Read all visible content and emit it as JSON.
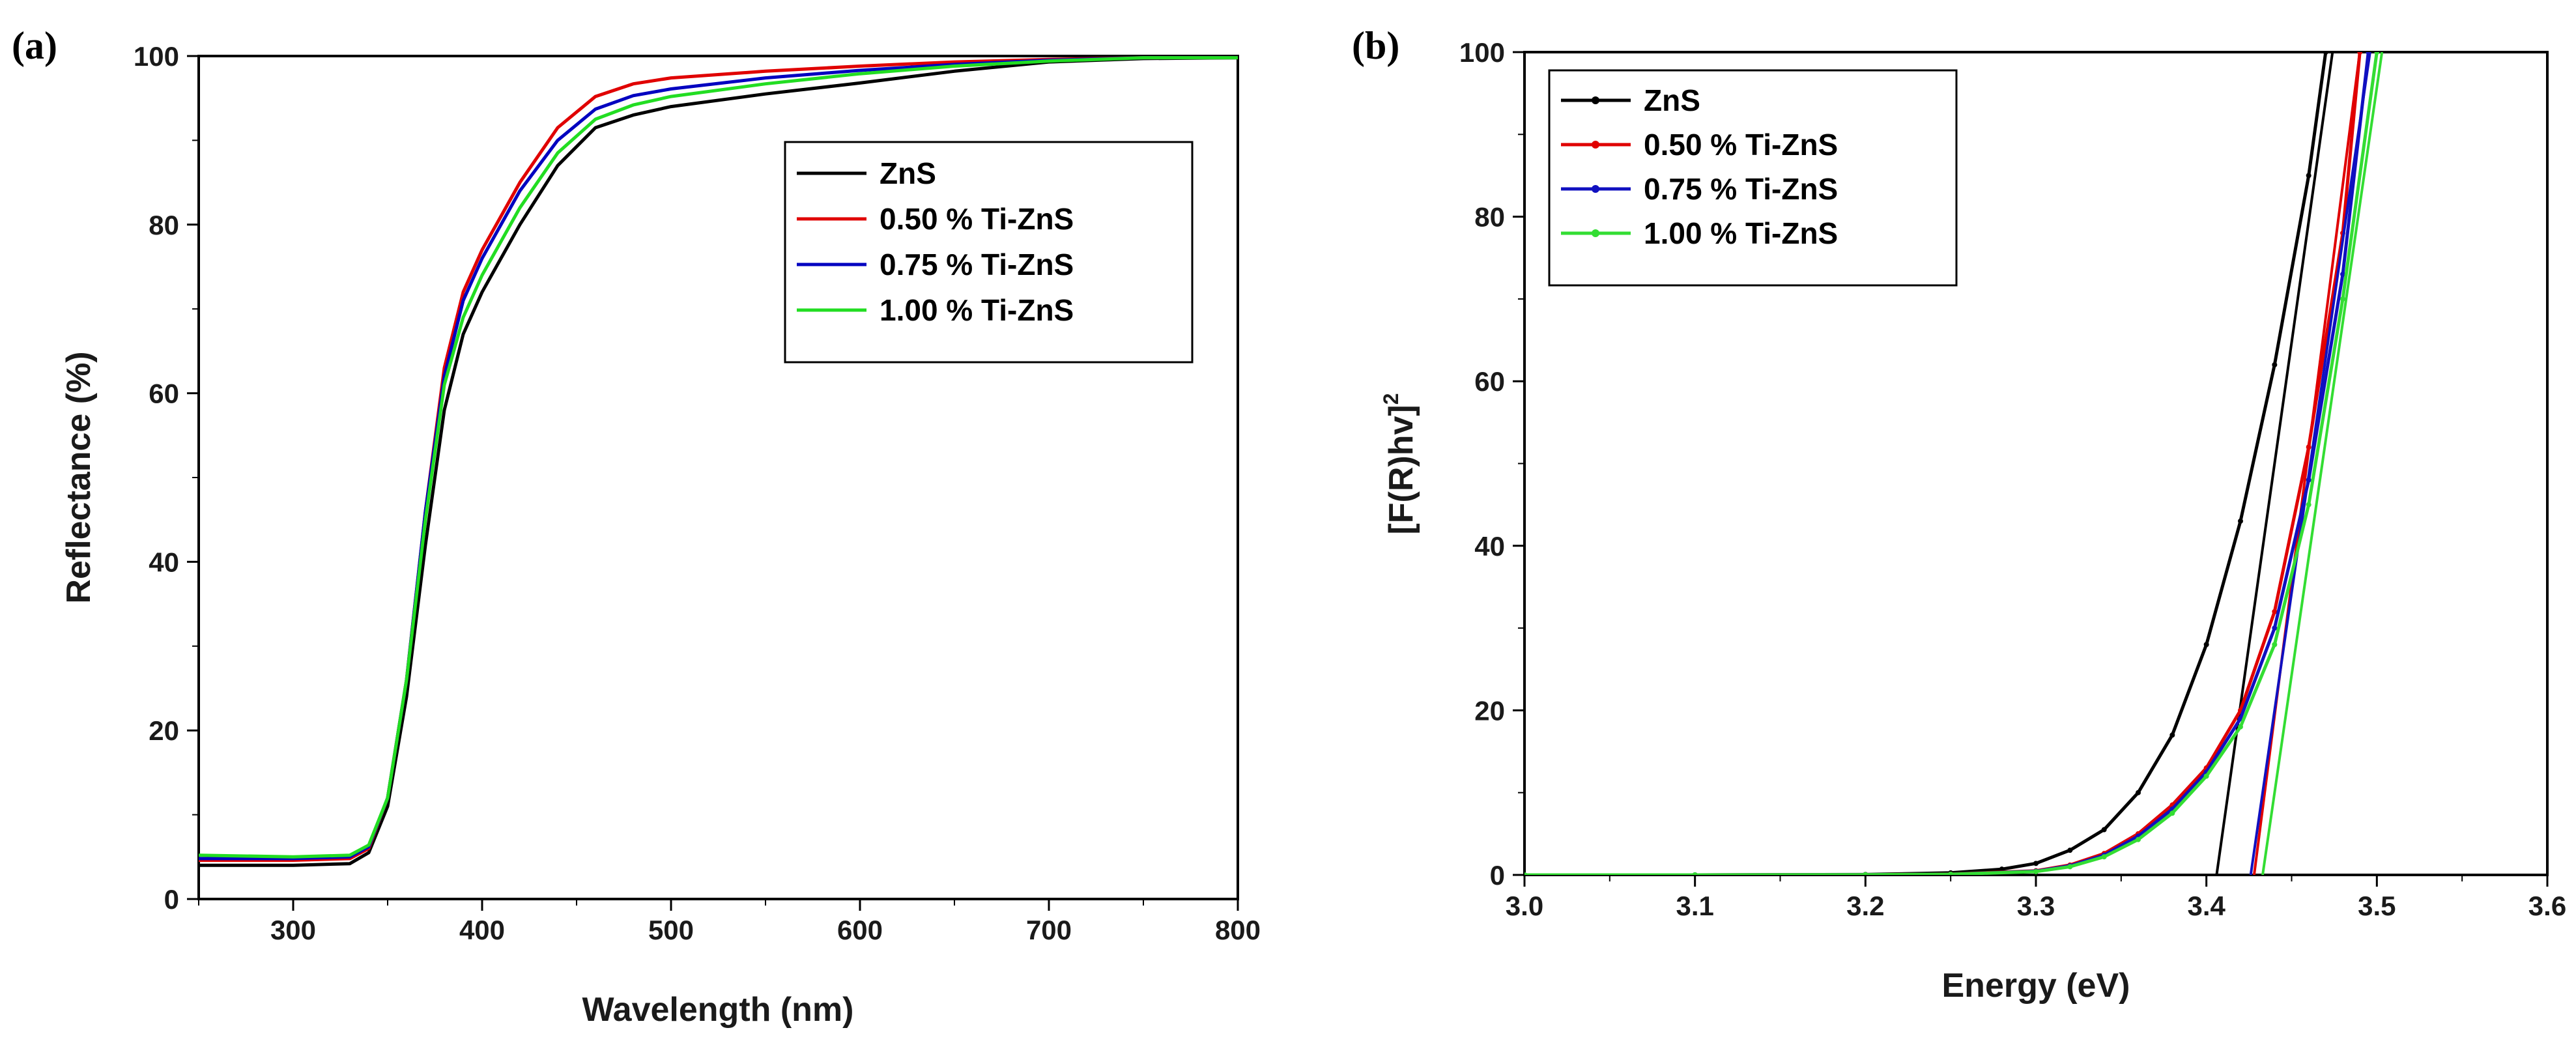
{
  "chart_data": [
    {
      "type": "line",
      "panel_label": "(a)",
      "title": "",
      "xlabel": "Wavelength (nm)",
      "ylabel": "Reflectance (%)",
      "xlim": [
        250,
        800
      ],
      "ylim": [
        0,
        100
      ],
      "xticks": [
        300,
        400,
        500,
        600,
        700,
        800
      ],
      "yticks": [
        0,
        20,
        40,
        60,
        80,
        100
      ],
      "grid": false,
      "legend_position": "top-right",
      "series": [
        {
          "name": "ZnS",
          "color": "#000000",
          "x": [
            250,
            300,
            330,
            340,
            350,
            360,
            370,
            380,
            390,
            400,
            420,
            440,
            460,
            480,
            500,
            550,
            600,
            650,
            700,
            750,
            800
          ],
          "y": [
            4.0,
            4.0,
            4.2,
            5.5,
            11,
            24,
            42,
            58,
            67,
            72,
            80,
            87,
            91.5,
            93,
            94,
            95.5,
            96.8,
            98.2,
            99.3,
            99.7,
            99.8
          ]
        },
        {
          "name": "0.50 % Ti-ZnS",
          "color": "#e00000",
          "x": [
            250,
            300,
            330,
            340,
            350,
            360,
            370,
            380,
            390,
            400,
            420,
            440,
            460,
            480,
            500,
            550,
            600,
            650,
            700,
            750,
            800
          ],
          "y": [
            4.6,
            4.6,
            4.8,
            6,
            12,
            26,
            46,
            63,
            72,
            77,
            85,
            91.5,
            95.2,
            96.7,
            97.4,
            98.2,
            98.8,
            99.3,
            99.6,
            99.8,
            99.8
          ]
        },
        {
          "name": "0.75 % Ti-ZnS",
          "color": "#0000c0",
          "x": [
            250,
            300,
            330,
            340,
            350,
            360,
            370,
            380,
            390,
            400,
            420,
            440,
            460,
            480,
            500,
            550,
            600,
            650,
            700,
            750,
            800
          ],
          "y": [
            4.8,
            4.8,
            5.0,
            6.2,
            12,
            26,
            46,
            62,
            71,
            76,
            84,
            90,
            93.7,
            95.3,
            96.1,
            97.4,
            98.3,
            99.0,
            99.5,
            99.8,
            99.8
          ]
        },
        {
          "name": "1.00 % Ti-ZnS",
          "color": "#22dd22",
          "x": [
            250,
            300,
            330,
            340,
            350,
            360,
            370,
            380,
            390,
            400,
            420,
            440,
            460,
            480,
            500,
            550,
            600,
            650,
            700,
            750,
            800
          ],
          "y": [
            5.2,
            5.0,
            5.2,
            6.4,
            12,
            26,
            45,
            61,
            69,
            74,
            82,
            88.5,
            92.5,
            94.2,
            95.2,
            96.7,
            97.9,
            98.8,
            99.4,
            99.8,
            99.8
          ]
        }
      ]
    },
    {
      "type": "line",
      "panel_label": "(b)",
      "title": "",
      "xlabel": "Energy (eV)",
      "ylabel_main": "[F(R)hv]",
      "ylabel_sup": "2",
      "xlim": [
        3.0,
        3.6
      ],
      "ylim": [
        0,
        100
      ],
      "xticks": [
        "3.0",
        "3.1",
        "3.2",
        "3.3",
        "3.4",
        "3.5",
        "3.6"
      ],
      "yticks": [
        0,
        20,
        40,
        60,
        80,
        100
      ],
      "grid": false,
      "legend_position": "top-left",
      "series": [
        {
          "name": "ZnS",
          "color": "#000000",
          "x": [
            3.0,
            3.1,
            3.2,
            3.25,
            3.28,
            3.3,
            3.32,
            3.34,
            3.36,
            3.38,
            3.4,
            3.42,
            3.44,
            3.46,
            3.47
          ],
          "y": [
            0,
            0,
            0.05,
            0.25,
            0.7,
            1.4,
            3.0,
            5.5,
            10,
            17,
            28,
            43,
            62,
            85,
            100
          ],
          "fit": {
            "x": [
              3.406,
              3.474
            ],
            "y": [
              0,
              100
            ]
          }
        },
        {
          "name": "0.50 % Ti-ZnS",
          "color": "#e00000",
          "x": [
            3.0,
            3.1,
            3.2,
            3.25,
            3.3,
            3.32,
            3.34,
            3.36,
            3.38,
            3.4,
            3.42,
            3.44,
            3.46,
            3.48,
            3.49
          ],
          "y": [
            0,
            0,
            0.02,
            0.1,
            0.5,
            1.2,
            2.6,
            5,
            8.5,
            13,
            20,
            32,
            52,
            78,
            100
          ],
          "fit": {
            "x": [
              3.428,
              3.49
            ],
            "y": [
              0,
              100
            ]
          }
        },
        {
          "name": "0.75 % Ti-ZnS",
          "color": "#1010c0",
          "x": [
            3.0,
            3.1,
            3.2,
            3.25,
            3.3,
            3.32,
            3.34,
            3.36,
            3.38,
            3.4,
            3.42,
            3.44,
            3.46,
            3.48,
            3.495
          ],
          "y": [
            0,
            0,
            0.02,
            0.08,
            0.45,
            1.1,
            2.4,
            4.7,
            8,
            12.5,
            19,
            30,
            48,
            73,
            100
          ],
          "fit": {
            "x": [
              3.426,
              3.496
            ],
            "y": [
              0,
              100
            ]
          }
        },
        {
          "name": "1.00 % Ti-ZnS",
          "color": "#33dd33",
          "x": [
            3.0,
            3.1,
            3.2,
            3.25,
            3.3,
            3.32,
            3.34,
            3.36,
            3.38,
            3.4,
            3.42,
            3.44,
            3.46,
            3.48,
            3.5
          ],
          "y": [
            0,
            0,
            0.02,
            0.08,
            0.4,
            1.0,
            2.2,
            4.3,
            7.5,
            12,
            18,
            28,
            45,
            70,
            100
          ],
          "fit": {
            "x": [
              3.433,
              3.503
            ],
            "y": [
              0,
              100
            ]
          }
        }
      ]
    }
  ]
}
